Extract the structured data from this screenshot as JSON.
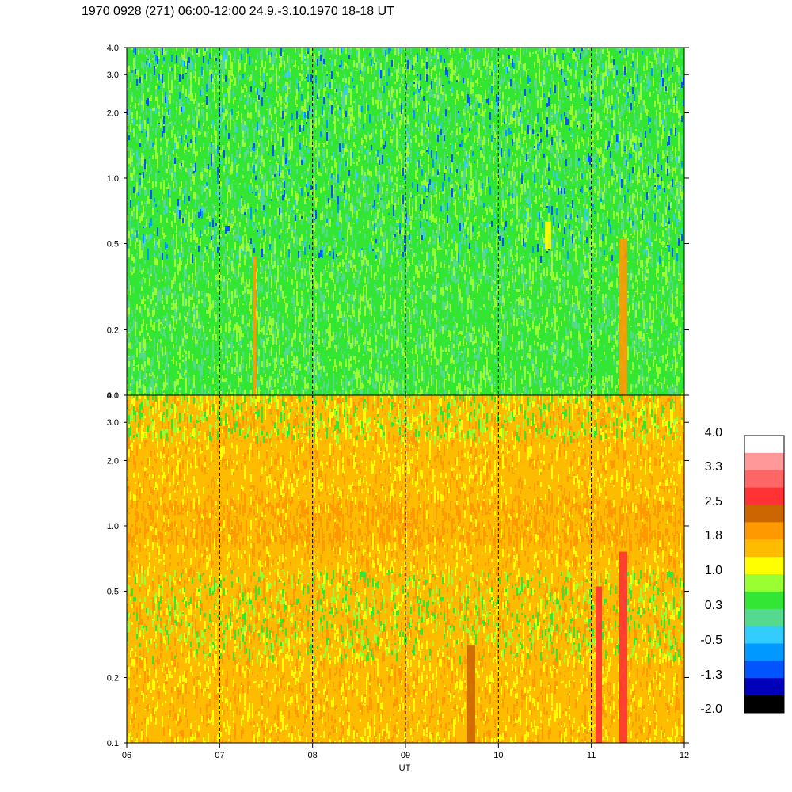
{
  "title": "1970 0928 (271) 06:00-12:00 24.9.-3.10.1970  18-18 UT",
  "chart_data": [
    {
      "type": "heatmap",
      "panel": "upper",
      "xlabel": "",
      "ylabel": "",
      "x_range": [
        "06",
        "12"
      ],
      "y_scale": "log",
      "ylim": [
        0.1,
        4.0
      ],
      "y_ticks": [
        "4.0",
        "3.0",
        "2.0",
        "1.0",
        "0.5",
        "0.2",
        "0.1"
      ],
      "y_tick_values": [
        4.0,
        3.0,
        2.0,
        1.0,
        0.5,
        0.2,
        0.1
      ],
      "dominant_color": "#33e633",
      "noise_colors": [
        "#33e633",
        "#33e633",
        "#99ff33",
        "#99ff33",
        "#55d98f",
        "#55d98f",
        "#33ccff",
        "#0099ff",
        "#0055ff"
      ],
      "vertical_dashed_lines_at": [
        "07",
        "08",
        "09",
        "10",
        "11"
      ]
    },
    {
      "type": "heatmap",
      "panel": "lower",
      "xlabel": "UT",
      "ylabel": "",
      "x_range": [
        "06",
        "12"
      ],
      "x_ticks": [
        "06",
        "07",
        "08",
        "09",
        "10",
        "11",
        "12"
      ],
      "y_scale": "log",
      "ylim": [
        0.1,
        4.0
      ],
      "y_ticks": [
        "4.0",
        "3.0",
        "2.0",
        "1.0",
        "0.5",
        "0.2",
        "0.1"
      ],
      "y_tick_values": [
        4.0,
        3.0,
        2.0,
        1.0,
        0.5,
        0.2,
        0.1
      ],
      "dominant_color": "#ffbb00",
      "noise_colors": [
        "#ffbb00",
        "#ffbb00",
        "#ff9900",
        "#ffff00",
        "#99ff33",
        "#33e633"
      ],
      "vertical_dashed_lines_at": [
        "07",
        "08",
        "09",
        "10",
        "11"
      ]
    }
  ],
  "colorbar": {
    "labels": [
      "4.0",
      "3.3",
      "2.5",
      "1.8",
      "1.0",
      "0.3",
      "-0.5",
      "-1.3",
      "-2.0"
    ],
    "colors": [
      "#ffffff",
      "#ff9999",
      "#ff6666",
      "#ff3333",
      "#cc6600",
      "#ff9900",
      "#ffbb00",
      "#ffff00",
      "#99ff33",
      "#33e633",
      "#55d98f",
      "#33ccff",
      "#0099ff",
      "#0055ff",
      "#0000bb",
      "#000000"
    ]
  }
}
